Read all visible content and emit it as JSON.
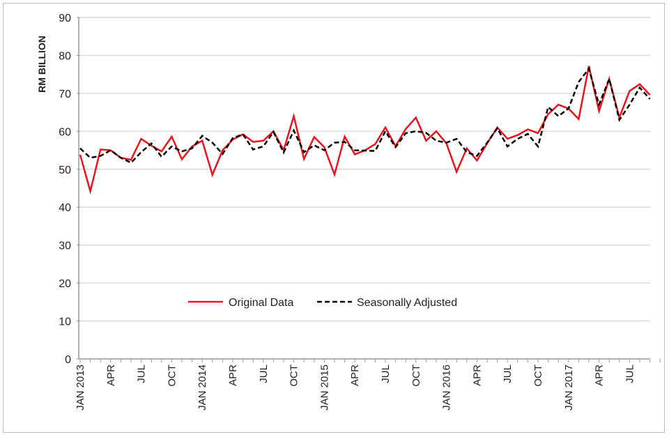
{
  "chart_data": {
    "type": "line",
    "title": "",
    "xlabel": "",
    "ylabel": "RM BILLION",
    "ylim": [
      0,
      90
    ],
    "yticks": [
      0,
      10,
      20,
      30,
      40,
      50,
      60,
      70,
      80,
      90
    ],
    "grid": true,
    "legend_position": "center",
    "x_tick_labels": [
      "JAN 2013",
      "APR",
      "JUL",
      "OCT",
      "JAN 2014",
      "APR",
      "JUL",
      "OCT",
      "JAN 2015",
      "APR",
      "JUL",
      "OCT",
      "JAN 2016",
      "APR",
      "JUL",
      "OCT",
      "JAN 2017",
      "APR",
      "JUL"
    ],
    "x_start": "2013-01",
    "x_count": 57,
    "series": [
      {
        "name": "Original Data",
        "color": "#e8141b",
        "style": "solid",
        "values": [
          53.8,
          44.2,
          55.2,
          55.0,
          53.0,
          52.5,
          58.0,
          56.2,
          54.7,
          58.6,
          52.6,
          56.0,
          57.5,
          48.5,
          55.0,
          57.8,
          59.2,
          57.2,
          57.5,
          60.0,
          55.0,
          64.0,
          52.7,
          58.5,
          55.8,
          48.6,
          58.6,
          53.9,
          55.0,
          56.6,
          61.0,
          56.1,
          60.6,
          63.6,
          57.5,
          60.0,
          56.8,
          49.3,
          55.5,
          52.3,
          56.8,
          61.0,
          58.0,
          59.0,
          60.5,
          59.5,
          64.5,
          67.0,
          66.0,
          63.2,
          77.2,
          65.3,
          73.8,
          63.6,
          70.6,
          72.4,
          69.6
        ]
      },
      {
        "name": "Seasonally Adjusted",
        "color": "#000000",
        "style": "dashed",
        "values": [
          55.5,
          53.0,
          53.5,
          55.0,
          53.0,
          51.7,
          54.5,
          56.8,
          53.3,
          56.0,
          54.7,
          55.5,
          58.8,
          57.0,
          54.0,
          58.2,
          59.2,
          55.2,
          56.0,
          59.8,
          54.4,
          60.2,
          54.5,
          56.3,
          55.0,
          57.0,
          57.2,
          55.0,
          54.9,
          54.8,
          60.0,
          55.8,
          59.5,
          60.0,
          59.6,
          57.5,
          57.0,
          58.0,
          54.5,
          53.5,
          57.0,
          60.8,
          56.0,
          58.0,
          59.3,
          56.0,
          66.4,
          64.0,
          66.0,
          73.0,
          76.5,
          67.0,
          73.8,
          63.0,
          67.0,
          71.5,
          68.5
        ]
      }
    ]
  }
}
